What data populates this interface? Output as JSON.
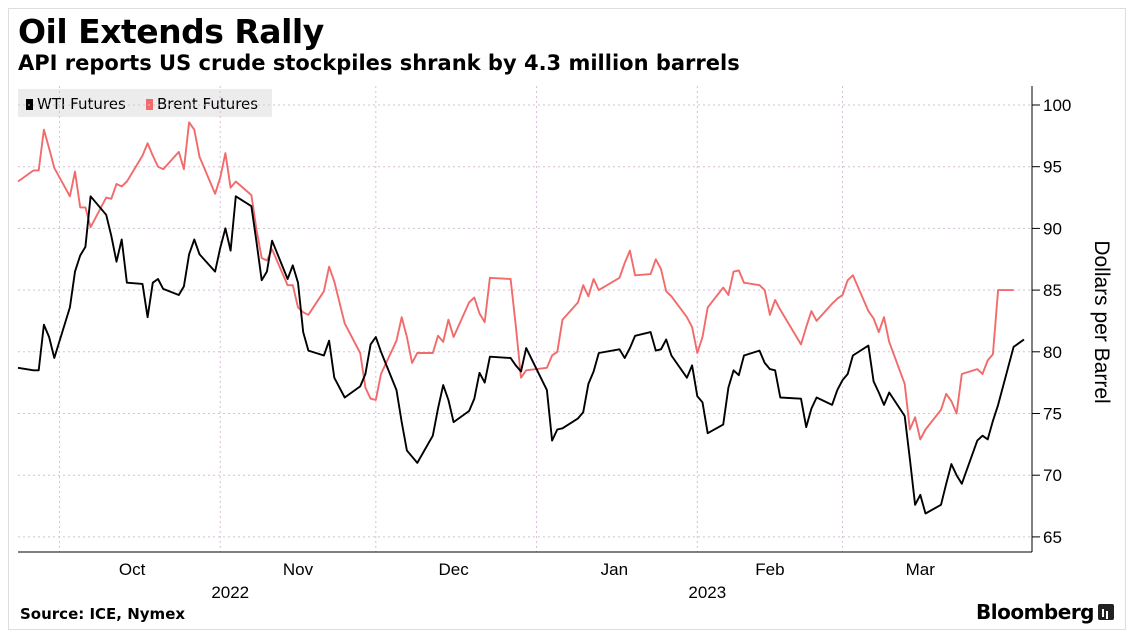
{
  "title": "Oil Extends Rally",
  "subtitle": "API reports US crude stockpiles shrank by 4.3 million barrels",
  "source": "Source: ICE, Nymex",
  "brand": "Bloomberg",
  "legend": [
    {
      "name": "WTI Futures",
      "color": "#000000"
    },
    {
      "name": "Brent Futures",
      "color": "#f26b6b"
    }
  ],
  "chart_data": {
    "type": "line",
    "title": "Oil Extends Rally",
    "subtitle": "API reports US crude stockpiles shrank by 4.3 million barrels",
    "ylabel": "Dollars per Barrel",
    "ylim": [
      64,
      102
    ],
    "yticks": [
      65,
      70,
      75,
      80,
      85,
      90,
      95,
      100
    ],
    "y_axis_position": "right",
    "x_ticks": [
      {
        "label": "Oct",
        "date": "2022-10-01"
      },
      {
        "label": "Nov",
        "date": "2022-11-01"
      },
      {
        "label": "Dec",
        "date": "2022-12-01"
      },
      {
        "label": "Jan",
        "date": "2023-01-01"
      },
      {
        "label": "Feb",
        "date": "2023-02-01"
      },
      {
        "label": "Mar",
        "date": "2023-03-01"
      }
    ],
    "year_labels": [
      {
        "label": "2022",
        "date": "2022-11-01"
      },
      {
        "label": "2023",
        "date": "2023-02-01"
      }
    ],
    "x_range": [
      "2022-09-23",
      "2023-04-05"
    ],
    "grid": true,
    "legend_position": "top-left",
    "series": [
      {
        "name": "WTI Futures",
        "color": "#000000",
        "points": [
          [
            "2022-09-23",
            78.7
          ],
          [
            "2022-09-26",
            78.5
          ],
          [
            "2022-09-27",
            78.5
          ],
          [
            "2022-09-28",
            82.2
          ],
          [
            "2022-09-29",
            81.2
          ],
          [
            "2022-09-30",
            79.5
          ],
          [
            "2022-10-03",
            83.6
          ],
          [
            "2022-10-04",
            86.5
          ],
          [
            "2022-10-05",
            87.8
          ],
          [
            "2022-10-06",
            88.5
          ],
          [
            "2022-10-07",
            92.6
          ],
          [
            "2022-10-10",
            91.1
          ],
          [
            "2022-10-11",
            89.4
          ],
          [
            "2022-10-12",
            87.3
          ],
          [
            "2022-10-13",
            89.1
          ],
          [
            "2022-10-14",
            85.6
          ],
          [
            "2022-10-17",
            85.5
          ],
          [
            "2022-10-18",
            82.8
          ],
          [
            "2022-10-19",
            85.6
          ],
          [
            "2022-10-20",
            85.9
          ],
          [
            "2022-10-21",
            85.1
          ],
          [
            "2022-10-24",
            84.6
          ],
          [
            "2022-10-25",
            85.3
          ],
          [
            "2022-10-26",
            87.9
          ],
          [
            "2022-10-27",
            89.1
          ],
          [
            "2022-10-28",
            87.9
          ],
          [
            "2022-10-31",
            86.5
          ],
          [
            "2022-11-01",
            88.4
          ],
          [
            "2022-11-02",
            90.0
          ],
          [
            "2022-11-03",
            88.2
          ],
          [
            "2022-11-04",
            92.6
          ],
          [
            "2022-11-07",
            91.8
          ],
          [
            "2022-11-08",
            88.9
          ],
          [
            "2022-11-09",
            85.8
          ],
          [
            "2022-11-10",
            86.5
          ],
          [
            "2022-11-11",
            89.0
          ],
          [
            "2022-11-14",
            85.9
          ],
          [
            "2022-11-15",
            87.0
          ],
          [
            "2022-11-16",
            85.6
          ],
          [
            "2022-11-17",
            81.6
          ],
          [
            "2022-11-18",
            80.1
          ],
          [
            "2022-11-21",
            79.7
          ],
          [
            "2022-11-22",
            80.9
          ],
          [
            "2022-11-23",
            77.9
          ],
          [
            "2022-11-25",
            76.3
          ],
          [
            "2022-11-28",
            77.2
          ],
          [
            "2022-11-29",
            78.2
          ],
          [
            "2022-11-30",
            80.6
          ],
          [
            "2022-12-01",
            81.2
          ],
          [
            "2022-12-02",
            80.0
          ],
          [
            "2022-12-05",
            76.9
          ],
          [
            "2022-12-06",
            74.3
          ],
          [
            "2022-12-07",
            72.0
          ],
          [
            "2022-12-08",
            71.5
          ],
          [
            "2022-12-09",
            71.0
          ],
          [
            "2022-12-12",
            73.2
          ],
          [
            "2022-12-13",
            75.4
          ],
          [
            "2022-12-14",
            77.3
          ],
          [
            "2022-12-15",
            76.1
          ],
          [
            "2022-12-16",
            74.3
          ],
          [
            "2022-12-19",
            75.2
          ],
          [
            "2022-12-20",
            76.2
          ],
          [
            "2022-12-21",
            78.3
          ],
          [
            "2022-12-22",
            77.5
          ],
          [
            "2022-12-23",
            79.6
          ],
          [
            "2022-12-27",
            79.5
          ],
          [
            "2022-12-28",
            78.9
          ],
          [
            "2022-12-29",
            78.4
          ],
          [
            "2022-12-30",
            80.3
          ],
          [
            "2023-01-03",
            76.9
          ],
          [
            "2023-01-04",
            72.8
          ],
          [
            "2023-01-05",
            73.7
          ],
          [
            "2023-01-06",
            73.8
          ],
          [
            "2023-01-09",
            74.6
          ],
          [
            "2023-01-10",
            75.1
          ],
          [
            "2023-01-11",
            77.4
          ],
          [
            "2023-01-12",
            78.4
          ],
          [
            "2023-01-13",
            79.9
          ],
          [
            "2023-01-17",
            80.2
          ],
          [
            "2023-01-18",
            79.5
          ],
          [
            "2023-01-19",
            80.3
          ],
          [
            "2023-01-20",
            81.3
          ],
          [
            "2023-01-23",
            81.6
          ],
          [
            "2023-01-24",
            80.1
          ],
          [
            "2023-01-25",
            80.2
          ],
          [
            "2023-01-26",
            81.0
          ],
          [
            "2023-01-27",
            79.7
          ],
          [
            "2023-01-30",
            77.9
          ],
          [
            "2023-01-31",
            78.9
          ],
          [
            "2023-02-01",
            76.4
          ],
          [
            "2023-02-02",
            75.9
          ],
          [
            "2023-02-03",
            73.4
          ],
          [
            "2023-02-06",
            74.1
          ],
          [
            "2023-02-07",
            77.1
          ],
          [
            "2023-02-08",
            78.5
          ],
          [
            "2023-02-09",
            78.1
          ],
          [
            "2023-02-10",
            79.7
          ],
          [
            "2023-02-13",
            80.1
          ],
          [
            "2023-02-14",
            79.1
          ],
          [
            "2023-02-15",
            78.6
          ],
          [
            "2023-02-16",
            78.5
          ],
          [
            "2023-02-17",
            76.3
          ],
          [
            "2023-02-21",
            76.2
          ],
          [
            "2023-02-22",
            73.9
          ],
          [
            "2023-02-23",
            75.4
          ],
          [
            "2023-02-24",
            76.3
          ],
          [
            "2023-02-27",
            75.7
          ],
          [
            "2023-02-28",
            76.9
          ],
          [
            "2023-03-01",
            77.7
          ],
          [
            "2023-03-02",
            78.2
          ],
          [
            "2023-03-03",
            79.7
          ],
          [
            "2023-03-06",
            80.5
          ],
          [
            "2023-03-07",
            77.6
          ],
          [
            "2023-03-08",
            76.7
          ],
          [
            "2023-03-09",
            75.7
          ],
          [
            "2023-03-10",
            76.7
          ],
          [
            "2023-03-13",
            74.8
          ],
          [
            "2023-03-14",
            71.3
          ],
          [
            "2023-03-15",
            67.6
          ],
          [
            "2023-03-16",
            68.4
          ],
          [
            "2023-03-17",
            66.9
          ],
          [
            "2023-03-20",
            67.6
          ],
          [
            "2023-03-21",
            69.3
          ],
          [
            "2023-03-22",
            70.9
          ],
          [
            "2023-03-23",
            70.0
          ],
          [
            "2023-03-24",
            69.3
          ],
          [
            "2023-03-27",
            72.8
          ],
          [
            "2023-03-28",
            73.2
          ],
          [
            "2023-03-29",
            72.9
          ],
          [
            "2023-03-30",
            74.4
          ],
          [
            "2023-03-31",
            75.7
          ],
          [
            "2023-04-03",
            80.4
          ],
          [
            "2023-04-04",
            80.7
          ],
          [
            "2023-04-05",
            81.0
          ]
        ]
      },
      {
        "name": "Brent Futures",
        "color": "#f26b6b",
        "points": [
          [
            "2022-09-23",
            93.8
          ],
          [
            "2022-09-26",
            94.7
          ],
          [
            "2022-09-27",
            94.7
          ],
          [
            "2022-09-28",
            98.0
          ],
          [
            "2022-09-29",
            96.5
          ],
          [
            "2022-09-30",
            94.9
          ],
          [
            "2022-10-03",
            92.6
          ],
          [
            "2022-10-04",
            94.6
          ],
          [
            "2022-10-05",
            91.7
          ],
          [
            "2022-10-06",
            91.7
          ],
          [
            "2022-10-07",
            90.1
          ],
          [
            "2022-10-10",
            92.5
          ],
          [
            "2022-10-11",
            92.4
          ],
          [
            "2022-10-12",
            93.6
          ],
          [
            "2022-10-13",
            93.4
          ],
          [
            "2022-10-14",
            93.8
          ],
          [
            "2022-10-17",
            95.9
          ],
          [
            "2022-10-18",
            96.9
          ],
          [
            "2022-10-19",
            95.9
          ],
          [
            "2022-10-20",
            95.0
          ],
          [
            "2022-10-21",
            94.8
          ],
          [
            "2022-10-24",
            96.2
          ],
          [
            "2022-10-25",
            94.8
          ],
          [
            "2022-10-26",
            98.6
          ],
          [
            "2022-10-27",
            98.0
          ],
          [
            "2022-10-28",
            95.8
          ],
          [
            "2022-10-31",
            92.8
          ],
          [
            "2022-11-01",
            94.1
          ],
          [
            "2022-11-02",
            96.1
          ],
          [
            "2022-11-03",
            93.3
          ],
          [
            "2022-11-04",
            93.8
          ],
          [
            "2022-11-07",
            92.7
          ],
          [
            "2022-11-08",
            89.9
          ],
          [
            "2022-11-09",
            87.6
          ],
          [
            "2022-11-10",
            87.4
          ],
          [
            "2022-11-11",
            88.3
          ],
          [
            "2022-11-14",
            85.4
          ],
          [
            "2022-11-15",
            85.4
          ],
          [
            "2022-11-16",
            83.6
          ],
          [
            "2022-11-17",
            83.2
          ],
          [
            "2022-11-18",
            83.0
          ],
          [
            "2022-11-21",
            84.9
          ],
          [
            "2022-11-22",
            86.9
          ],
          [
            "2022-11-23",
            85.7
          ],
          [
            "2022-11-25",
            82.3
          ],
          [
            "2022-11-28",
            79.9
          ],
          [
            "2022-11-29",
            77.1
          ],
          [
            "2022-11-30",
            76.2
          ],
          [
            "2022-12-01",
            76.1
          ],
          [
            "2022-12-02",
            78.2
          ],
          [
            "2022-12-05",
            80.9
          ],
          [
            "2022-12-06",
            82.8
          ],
          [
            "2022-12-07",
            81.2
          ],
          [
            "2022-12-08",
            79.1
          ],
          [
            "2022-12-09",
            79.9
          ],
          [
            "2022-12-12",
            79.9
          ],
          [
            "2022-12-13",
            81.3
          ],
          [
            "2022-12-14",
            80.8
          ],
          [
            "2022-12-15",
            82.6
          ],
          [
            "2022-12-16",
            81.2
          ],
          [
            "2022-12-19",
            84.0
          ],
          [
            "2022-12-20",
            84.4
          ],
          [
            "2022-12-21",
            83.1
          ],
          [
            "2022-12-22",
            82.4
          ],
          [
            "2022-12-23",
            86.0
          ],
          [
            "2022-12-27",
            85.9
          ],
          [
            "2022-12-28",
            82.1
          ],
          [
            "2022-12-29",
            77.9
          ],
          [
            "2022-12-30",
            78.5
          ],
          [
            "2023-01-03",
            78.7
          ],
          [
            "2023-01-04",
            79.7
          ],
          [
            "2023-01-05",
            80.0
          ],
          [
            "2023-01-06",
            82.6
          ],
          [
            "2023-01-09",
            84.0
          ],
          [
            "2023-01-10",
            85.4
          ],
          [
            "2023-01-11",
            84.5
          ],
          [
            "2023-01-12",
            85.9
          ],
          [
            "2023-01-13",
            85.0
          ],
          [
            "2023-01-17",
            86.0
          ],
          [
            "2023-01-18",
            87.2
          ],
          [
            "2023-01-19",
            88.2
          ],
          [
            "2023-01-20",
            86.2
          ],
          [
            "2023-01-23",
            86.3
          ],
          [
            "2023-01-24",
            87.5
          ],
          [
            "2023-01-25",
            86.7
          ],
          [
            "2023-01-26",
            84.9
          ],
          [
            "2023-01-27",
            84.5
          ],
          [
            "2023-01-30",
            82.8
          ],
          [
            "2023-01-31",
            82.0
          ],
          [
            "2023-02-01",
            79.9
          ],
          [
            "2023-02-02",
            81.2
          ],
          [
            "2023-02-03",
            83.6
          ],
          [
            "2023-02-06",
            85.2
          ],
          [
            "2023-02-07",
            84.6
          ],
          [
            "2023-02-08",
            86.5
          ],
          [
            "2023-02-09",
            86.6
          ],
          [
            "2023-02-10",
            85.6
          ],
          [
            "2023-02-13",
            85.4
          ],
          [
            "2023-02-14",
            85.0
          ],
          [
            "2023-02-15",
            83.0
          ],
          [
            "2023-02-16",
            84.2
          ],
          [
            "2023-02-17",
            83.4
          ],
          [
            "2023-02-21",
            80.6
          ],
          [
            "2023-02-22",
            82.0
          ],
          [
            "2023-02-23",
            83.3
          ],
          [
            "2023-02-24",
            82.5
          ],
          [
            "2023-02-27",
            83.9
          ],
          [
            "2023-02-28",
            84.3
          ],
          [
            "2023-03-01",
            84.6
          ],
          [
            "2023-03-02",
            85.8
          ],
          [
            "2023-03-03",
            86.2
          ],
          [
            "2023-03-06",
            83.3
          ],
          [
            "2023-03-07",
            82.7
          ],
          [
            "2023-03-08",
            81.6
          ],
          [
            "2023-03-09",
            82.8
          ],
          [
            "2023-03-10",
            80.8
          ],
          [
            "2023-03-13",
            77.4
          ],
          [
            "2023-03-14",
            73.7
          ],
          [
            "2023-03-15",
            74.7
          ],
          [
            "2023-03-16",
            72.9
          ],
          [
            "2023-03-17",
            73.7
          ],
          [
            "2023-03-20",
            75.3
          ],
          [
            "2023-03-21",
            76.6
          ],
          [
            "2023-03-22",
            76.0
          ],
          [
            "2023-03-23",
            75.0
          ],
          [
            "2023-03-24",
            78.2
          ],
          [
            "2023-03-27",
            78.6
          ],
          [
            "2023-03-28",
            78.2
          ],
          [
            "2023-03-29",
            79.3
          ],
          [
            "2023-03-30",
            79.8
          ],
          [
            "2023-03-31",
            85.0
          ],
          [
            "2023-04-03",
            85.0
          ]
        ]
      }
    ]
  }
}
